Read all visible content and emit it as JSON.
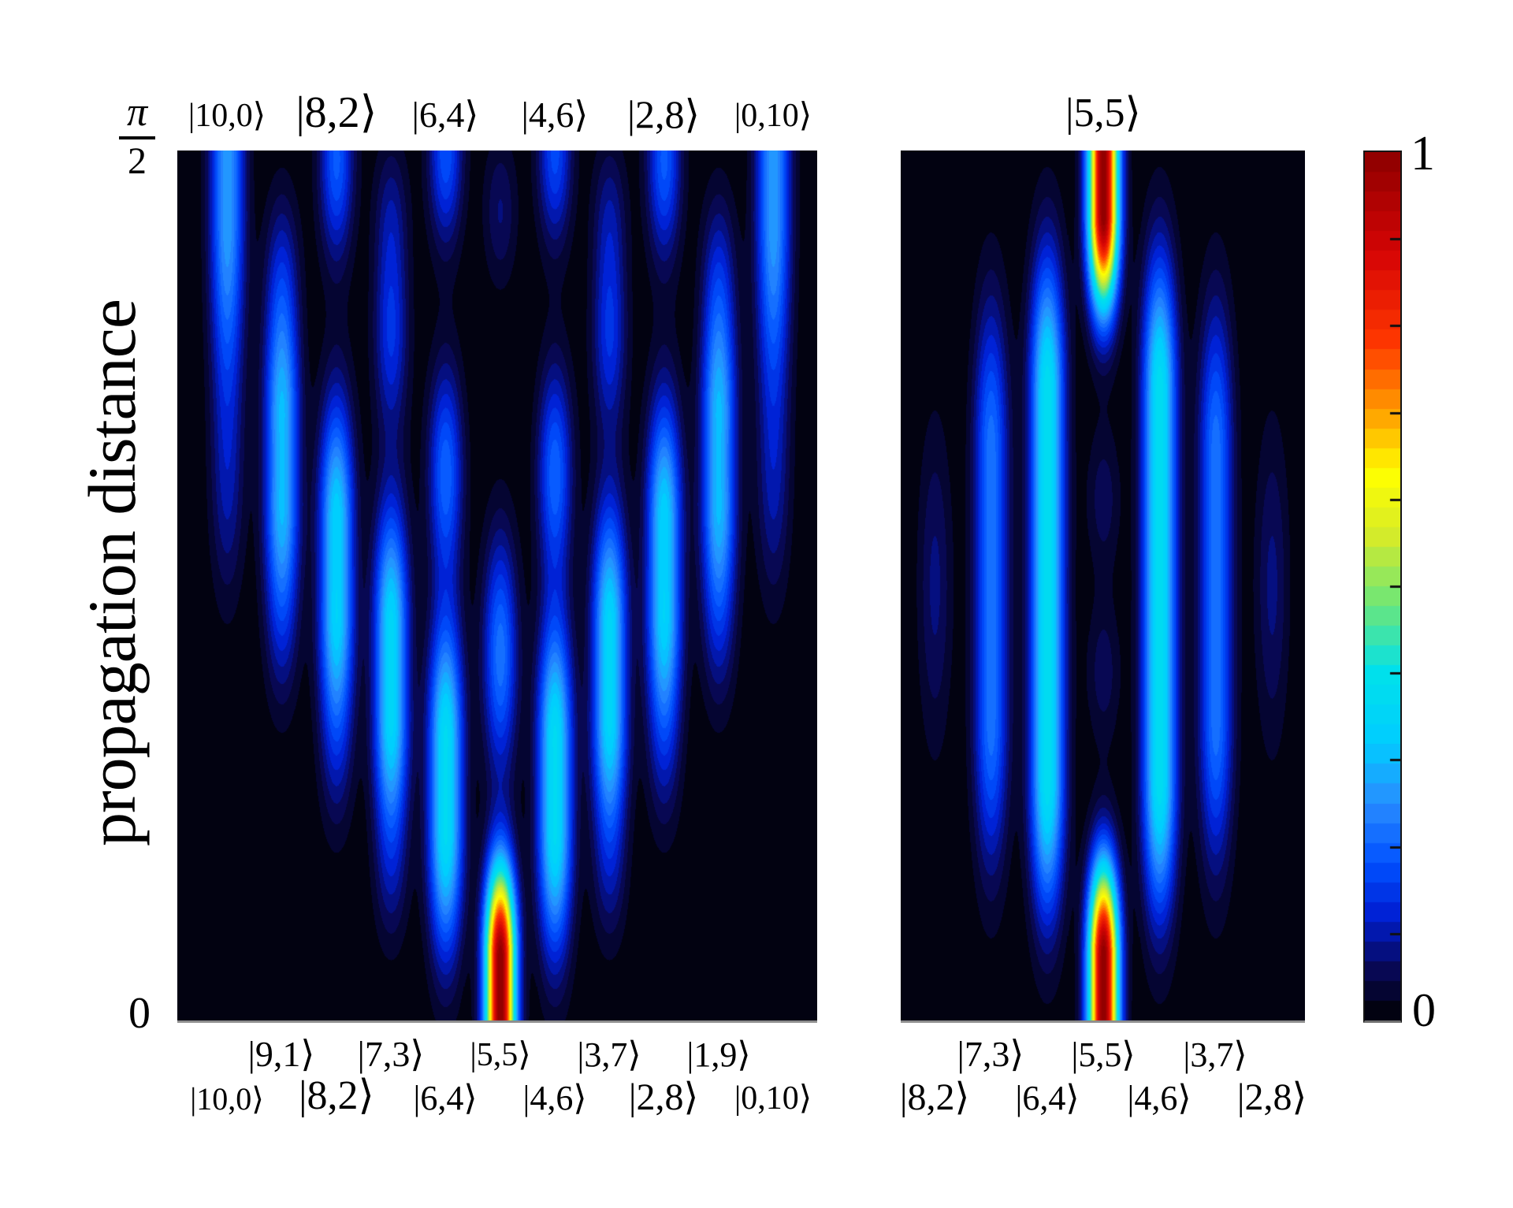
{
  "chart_data": {
    "type": "heatmap",
    "title": "",
    "ylabel": "propagation distance",
    "y_axis": {
      "bottom_tick": "0",
      "top_tick_numerator": "π",
      "top_tick_denominator": "2",
      "range": [
        "0",
        "π/2"
      ]
    },
    "colorbar": {
      "min_label": "0",
      "max_label": "1",
      "range": [
        0,
        1
      ],
      "levels": 44,
      "stops": [
        [
          0.0,
          [
            0,
            0,
            0
          ]
        ],
        [
          0.06,
          [
            8,
            8,
            88
          ]
        ],
        [
          0.12,
          [
            0,
            30,
            210
          ]
        ],
        [
          0.18,
          [
            0,
            80,
            255
          ]
        ],
        [
          0.25,
          [
            40,
            140,
            255
          ]
        ],
        [
          0.32,
          [
            0,
            205,
            255
          ]
        ],
        [
          0.4,
          [
            0,
            225,
            235
          ]
        ],
        [
          0.48,
          [
            110,
            230,
            120
          ]
        ],
        [
          0.56,
          [
            215,
            235,
            40
          ]
        ],
        [
          0.63,
          [
            255,
            255,
            0
          ]
        ],
        [
          0.7,
          [
            255,
            160,
            0
          ]
        ],
        [
          0.78,
          [
            255,
            55,
            0
          ]
        ],
        [
          0.88,
          [
            215,
            5,
            5
          ]
        ],
        [
          1.0,
          [
            140,
            0,
            0
          ]
        ]
      ]
    },
    "panels": [
      {
        "name": "left",
        "columns": 11,
        "input_state": "|5,5⟩",
        "top_labels": [
          "|10,0⟩",
          "|8,2⟩",
          "|6,4⟩",
          "|4,6⟩",
          "|2,8⟩",
          "|0,10⟩"
        ],
        "bottom_labels_odd": [
          "|9,1⟩",
          "|7,3⟩",
          "|5,5⟩",
          "|3,7⟩",
          "|1,9⟩"
        ],
        "bottom_labels_even": [
          "|10,0⟩",
          "|8,2⟩",
          "|6,4⟩",
          "|4,6⟩",
          "|2,8⟩",
          "|0,10⟩"
        ],
        "bumps": [
          {
            "c": 5,
            "zlo": -1,
            "zhi": 0.07,
            "sz": 0.075,
            "a": 1.0,
            "sx": 13
          },
          {
            "c": 4,
            "zlo": 0.22,
            "zhi": 0.32,
            "sz": 0.1,
            "a": 0.37
          },
          {
            "c": 6,
            "zlo": 0.22,
            "zhi": 0.32,
            "sz": 0.1,
            "a": 0.37
          },
          {
            "c": 3,
            "zlo": 0.35,
            "zhi": 0.45,
            "sz": 0.1,
            "a": 0.35
          },
          {
            "c": 7,
            "zlo": 0.35,
            "zhi": 0.45,
            "sz": 0.1,
            "a": 0.35
          },
          {
            "c": 2,
            "zlo": 0.47,
            "zhi": 0.57,
            "sz": 0.1,
            "a": 0.34
          },
          {
            "c": 8,
            "zlo": 0.47,
            "zhi": 0.57,
            "sz": 0.1,
            "a": 0.34
          },
          {
            "c": 1,
            "zlo": 0.6,
            "zhi": 0.69,
            "sz": 0.1,
            "a": 0.3
          },
          {
            "c": 9,
            "zlo": 0.6,
            "zhi": 0.69,
            "sz": 0.1,
            "a": 0.3
          },
          {
            "c": 0,
            "zlo": 0.93,
            "zhi": 1.1,
            "sz": 0.16,
            "a": 0.27
          },
          {
            "c": 10,
            "zlo": 0.93,
            "zhi": 1.1,
            "sz": 0.16,
            "a": 0.27
          },
          {
            "c": 5,
            "z0": 0.42,
            "sz": 0.095,
            "a": 0.22
          },
          {
            "c": 4,
            "z0": 0.63,
            "sz": 0.085,
            "a": 0.2
          },
          {
            "c": 6,
            "z0": 0.63,
            "sz": 0.085,
            "a": 0.2
          },
          {
            "c": 3,
            "z0": 0.79,
            "sz": 0.08,
            "a": 0.14
          },
          {
            "c": 7,
            "z0": 0.79,
            "sz": 0.08,
            "a": 0.14
          },
          {
            "c": 2,
            "z0": 0.99,
            "sz": 0.08,
            "a": 0.19
          },
          {
            "c": 8,
            "z0": 0.99,
            "sz": 0.08,
            "a": 0.19
          },
          {
            "c": 4,
            "z0": 1.0,
            "sz": 0.075,
            "a": 0.18
          },
          {
            "c": 6,
            "z0": 1.0,
            "sz": 0.075,
            "a": 0.17
          },
          {
            "c": 1,
            "z0": 0.86,
            "sz": 0.07,
            "a": 0.08
          },
          {
            "c": 9,
            "z0": 0.86,
            "sz": 0.07,
            "a": 0.08
          },
          {
            "c": 3,
            "z0": 0.93,
            "sz": 0.06,
            "a": 0.07
          },
          {
            "c": 5,
            "z0": 0.93,
            "sz": 0.06,
            "a": 0.07
          },
          {
            "c": 7,
            "z0": 0.93,
            "sz": 0.06,
            "a": 0.07
          },
          {
            "c": 2,
            "z0": 0.3,
            "sz": 0.07,
            "a": 0.05
          },
          {
            "c": 8,
            "z0": 0.3,
            "sz": 0.07,
            "a": 0.05
          },
          {
            "c": 1,
            "z0": 0.44,
            "sz": 0.07,
            "a": 0.05
          },
          {
            "c": 9,
            "z0": 0.44,
            "sz": 0.07,
            "a": 0.05
          },
          {
            "c": 0,
            "z0": 0.6,
            "sz": 0.09,
            "a": 0.07
          },
          {
            "c": 10,
            "z0": 0.6,
            "sz": 0.09,
            "a": 0.07
          },
          {
            "c": 3,
            "z0": 0.16,
            "sz": 0.06,
            "a": 0.05
          },
          {
            "c": 7,
            "z0": 0.16,
            "sz": 0.06,
            "a": 0.05
          }
        ]
      },
      {
        "name": "right",
        "columns": 7,
        "input_state": "|5,5⟩",
        "top_labels": [
          "|5,5⟩"
        ],
        "bottom_labels_odd": [
          "|7,3⟩",
          "|5,5⟩",
          "|3,7⟩"
        ],
        "bottom_labels_even": [
          "|8,2⟩",
          "|6,4⟩",
          "|4,6⟩",
          "|2,8⟩"
        ],
        "bumps": [
          {
            "c": 3,
            "zlo": -1,
            "zhi": 0.07,
            "sz": 0.075,
            "a": 1.0,
            "sx": 13
          },
          {
            "c": 3,
            "zlo": 0.93,
            "zhi": 2,
            "sz": 0.075,
            "a": 1.0,
            "sx": 13
          },
          {
            "c": 2,
            "zlo": 0.28,
            "zhi": 0.72,
            "sz": 0.11,
            "a": 0.38
          },
          {
            "c": 4,
            "zlo": 0.28,
            "zhi": 0.72,
            "sz": 0.11,
            "a": 0.38
          },
          {
            "c": 1,
            "zlo": 0.35,
            "zhi": 0.65,
            "sz": 0.12,
            "a": 0.22
          },
          {
            "c": 5,
            "zlo": 0.35,
            "zhi": 0.65,
            "sz": 0.12,
            "a": 0.22
          },
          {
            "c": 0,
            "z0": 0.5,
            "sz": 0.13,
            "a": 0.075
          },
          {
            "c": 6,
            "z0": 0.5,
            "sz": 0.13,
            "a": 0.075
          },
          {
            "c": 3,
            "z0": 0.4,
            "sz": 0.06,
            "a": 0.06
          },
          {
            "c": 3,
            "z0": 0.6,
            "sz": 0.06,
            "a": 0.06
          }
        ]
      }
    ]
  }
}
